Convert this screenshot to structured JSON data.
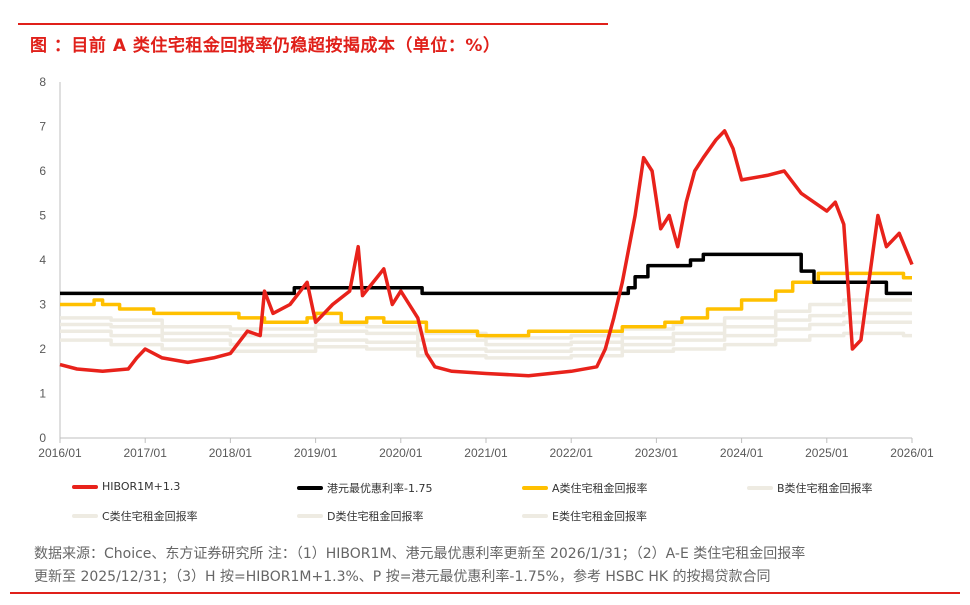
{
  "title": "图    ：目前 A 类住宅租金回报率仍稳超按揭成本（单位：%）",
  "footer": {
    "line1": "数据来源：Choice、东方证券研究所     注：（1）HIBOR1M、港元最优惠利率更新至 2026/1/31；（2）A-E 类住宅租金回报率",
    "line2": "更新至 2025/12/31；（3）H 按=HIBOR1M+1.3%、P 按=港元最优惠利率-1.75%，参考 HSBC HK 的按揭贷款合同"
  },
  "chart_data": {
    "type": "line",
    "xlabel": "",
    "ylabel": "",
    "xlim": [
      2016.0,
      2026.0
    ],
    "ylim": [
      0,
      8
    ],
    "yticks": [
      "0",
      "1",
      "2",
      "3",
      "4",
      "5",
      "6",
      "7",
      "8"
    ],
    "xticks": [
      "2016/01",
      "2017/01",
      "2018/01",
      "2019/01",
      "2020/01",
      "2021/01",
      "2022/01",
      "2023/01",
      "2024/01",
      "2025/01",
      "2026/01"
    ],
    "grid": false,
    "legend_position": "bottom",
    "series": [
      {
        "name": "E类住宅租金回报率",
        "color": "#eeebe2",
        "step": true,
        "points": [
          [
            2016.0,
            2.2
          ],
          [
            2016.6,
            2.1
          ],
          [
            2017.2,
            2.0
          ],
          [
            2018.0,
            1.95
          ],
          [
            2019.0,
            2.05
          ],
          [
            2019.6,
            2.0
          ],
          [
            2020.2,
            1.85
          ],
          [
            2021.0,
            1.8
          ],
          [
            2022.0,
            1.85
          ],
          [
            2022.6,
            1.95
          ],
          [
            2023.2,
            2.0
          ],
          [
            2023.8,
            2.1
          ],
          [
            2024.4,
            2.2
          ],
          [
            2024.8,
            2.3
          ],
          [
            2025.2,
            2.35
          ],
          [
            2025.9,
            2.3
          ]
        ]
      },
      {
        "name": "D类住宅租金回报率",
        "color": "#eeebe2",
        "step": true,
        "points": [
          [
            2016.0,
            2.4
          ],
          [
            2016.6,
            2.3
          ],
          [
            2017.2,
            2.2
          ],
          [
            2018.0,
            2.1
          ],
          [
            2019.0,
            2.2
          ],
          [
            2019.6,
            2.15
          ],
          [
            2020.2,
            2.0
          ],
          [
            2021.0,
            1.95
          ],
          [
            2022.0,
            2.0
          ],
          [
            2022.6,
            2.1
          ],
          [
            2023.2,
            2.2
          ],
          [
            2023.8,
            2.3
          ],
          [
            2024.4,
            2.45
          ],
          [
            2024.8,
            2.55
          ],
          [
            2025.2,
            2.6
          ],
          [
            2025.9,
            2.6
          ]
        ]
      },
      {
        "name": "C类住宅租金回报率",
        "color": "#eeebe2",
        "step": true,
        "points": [
          [
            2016.0,
            2.55
          ],
          [
            2016.6,
            2.5
          ],
          [
            2017.2,
            2.35
          ],
          [
            2018.0,
            2.3
          ],
          [
            2019.0,
            2.4
          ],
          [
            2019.6,
            2.35
          ],
          [
            2020.2,
            2.2
          ],
          [
            2021.0,
            2.1
          ],
          [
            2022.0,
            2.15
          ],
          [
            2022.6,
            2.25
          ],
          [
            2023.2,
            2.35
          ],
          [
            2023.8,
            2.5
          ],
          [
            2024.4,
            2.65
          ],
          [
            2024.8,
            2.75
          ],
          [
            2025.2,
            2.8
          ],
          [
            2025.9,
            2.8
          ]
        ]
      },
      {
        "name": "B类住宅租金回报率",
        "color": "#eeebe2",
        "step": true,
        "points": [
          [
            2016.0,
            2.7
          ],
          [
            2016.6,
            2.65
          ],
          [
            2017.2,
            2.5
          ],
          [
            2018.0,
            2.45
          ],
          [
            2019.0,
            2.55
          ],
          [
            2019.6,
            2.5
          ],
          [
            2020.2,
            2.35
          ],
          [
            2021.0,
            2.25
          ],
          [
            2022.0,
            2.3
          ],
          [
            2022.6,
            2.45
          ],
          [
            2023.2,
            2.55
          ],
          [
            2023.8,
            2.7
          ],
          [
            2024.4,
            2.85
          ],
          [
            2024.8,
            3.0
          ],
          [
            2025.2,
            3.1
          ],
          [
            2025.9,
            3.1
          ]
        ]
      },
      {
        "name": "A类住宅租金回报率",
        "color": "#ffc000",
        "step": true,
        "points": [
          [
            2016.0,
            3.0
          ],
          [
            2016.4,
            3.1
          ],
          [
            2016.5,
            3.0
          ],
          [
            2016.7,
            2.9
          ],
          [
            2017.1,
            2.8
          ],
          [
            2018.1,
            2.7
          ],
          [
            2018.4,
            2.6
          ],
          [
            2018.9,
            2.7
          ],
          [
            2019.0,
            2.8
          ],
          [
            2019.3,
            2.6
          ],
          [
            2019.6,
            2.7
          ],
          [
            2019.8,
            2.6
          ],
          [
            2020.3,
            2.4
          ],
          [
            2020.9,
            2.3
          ],
          [
            2021.5,
            2.4
          ],
          [
            2022.6,
            2.5
          ],
          [
            2023.1,
            2.6
          ],
          [
            2023.3,
            2.7
          ],
          [
            2023.6,
            2.9
          ],
          [
            2024.0,
            3.1
          ],
          [
            2024.4,
            3.3
          ],
          [
            2024.6,
            3.5
          ],
          [
            2024.9,
            3.7
          ],
          [
            2025.3,
            3.7
          ],
          [
            2025.9,
            3.6
          ]
        ]
      },
      {
        "name": "港元最优惠利率-1.75",
        "color": "#000000",
        "step": true,
        "points": [
          [
            2016.0,
            3.25
          ],
          [
            2018.75,
            3.375
          ],
          [
            2020.25,
            3.25
          ],
          [
            2022.67,
            3.375
          ],
          [
            2022.75,
            3.625
          ],
          [
            2022.9,
            3.875
          ],
          [
            2023.4,
            4.0
          ],
          [
            2023.55,
            4.125
          ],
          [
            2024.7,
            3.75
          ],
          [
            2024.85,
            3.5
          ],
          [
            2025.4,
            3.5
          ],
          [
            2025.7,
            3.25
          ],
          [
            2026.0,
            3.25
          ]
        ]
      },
      {
        "name": "HIBOR1M+1.3",
        "color": "#e8221b",
        "step": false,
        "points": [
          [
            2016.0,
            1.65
          ],
          [
            2016.2,
            1.55
          ],
          [
            2016.5,
            1.5
          ],
          [
            2016.8,
            1.55
          ],
          [
            2016.9,
            1.8
          ],
          [
            2017.0,
            2.0
          ],
          [
            2017.2,
            1.8
          ],
          [
            2017.5,
            1.7
          ],
          [
            2017.8,
            1.8
          ],
          [
            2018.0,
            1.9
          ],
          [
            2018.2,
            2.4
          ],
          [
            2018.35,
            2.3
          ],
          [
            2018.4,
            3.3
          ],
          [
            2018.5,
            2.8
          ],
          [
            2018.7,
            3.0
          ],
          [
            2018.9,
            3.5
          ],
          [
            2019.0,
            2.6
          ],
          [
            2019.2,
            3.0
          ],
          [
            2019.4,
            3.3
          ],
          [
            2019.5,
            4.3
          ],
          [
            2019.55,
            3.2
          ],
          [
            2019.8,
            3.8
          ],
          [
            2019.9,
            3.0
          ],
          [
            2020.0,
            3.3
          ],
          [
            2020.1,
            3.0
          ],
          [
            2020.2,
            2.7
          ],
          [
            2020.3,
            1.9
          ],
          [
            2020.4,
            1.6
          ],
          [
            2020.6,
            1.5
          ],
          [
            2021.0,
            1.45
          ],
          [
            2021.5,
            1.4
          ],
          [
            2022.0,
            1.5
          ],
          [
            2022.3,
            1.6
          ],
          [
            2022.4,
            2.0
          ],
          [
            2022.5,
            2.7
          ],
          [
            2022.6,
            3.5
          ],
          [
            2022.75,
            5.0
          ],
          [
            2022.85,
            6.3
          ],
          [
            2022.95,
            6.0
          ],
          [
            2023.05,
            4.7
          ],
          [
            2023.15,
            5.0
          ],
          [
            2023.25,
            4.3
          ],
          [
            2023.35,
            5.3
          ],
          [
            2023.45,
            6.0
          ],
          [
            2023.55,
            6.3
          ],
          [
            2023.7,
            6.7
          ],
          [
            2023.8,
            6.9
          ],
          [
            2023.9,
            6.5
          ],
          [
            2024.0,
            5.8
          ],
          [
            2024.3,
            5.9
          ],
          [
            2024.5,
            6.0
          ],
          [
            2024.7,
            5.5
          ],
          [
            2024.85,
            5.3
          ],
          [
            2025.0,
            5.1
          ],
          [
            2025.1,
            5.3
          ],
          [
            2025.2,
            4.8
          ],
          [
            2025.3,
            2.0
          ],
          [
            2025.4,
            2.2
          ],
          [
            2025.5,
            3.6
          ],
          [
            2025.6,
            5.0
          ],
          [
            2025.7,
            4.3
          ],
          [
            2025.85,
            4.6
          ],
          [
            2026.0,
            3.9
          ]
        ]
      }
    ]
  }
}
